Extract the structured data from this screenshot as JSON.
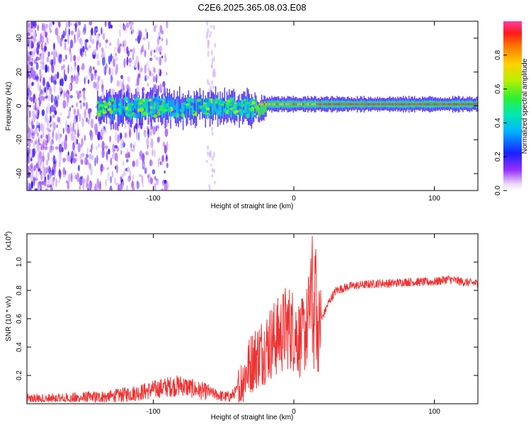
{
  "title": "C2E6.2025.365.08.03.E08",
  "colors": {
    "line": "#ee3333",
    "axis": "#000000",
    "spectrogram_low": "#7b18e6",
    "spectrogram_high": "#ff2020"
  },
  "chart_data": [
    {
      "type": "heatmap",
      "title": "C2E6.2025.365.08.03.E08",
      "xlabel": "Height of straight line (km)",
      "ylabel": "Frequency (Hz)",
      "xlim": [
        -190,
        131
      ],
      "ylim": [
        -50,
        50
      ],
      "xticks": [
        -100,
        0,
        100
      ],
      "xtick_labels": [
        "-100",
        "0",
        "100"
      ],
      "yticks": [
        -40,
        -20,
        0,
        20,
        40
      ],
      "ytick_labels": [
        "-40",
        "-20",
        "0",
        "20",
        "40"
      ],
      "colorbar": {
        "label": "Normalized spectral amplitude",
        "range": [
          0,
          1
        ],
        "ticks": [
          0.0,
          0.2,
          0.4,
          0.6,
          0.8
        ],
        "tick_labels": [
          "0.0",
          "0.2",
          "0.4",
          "0.6",
          "0.8"
        ],
        "colormap": "rainbow"
      },
      "description_of_values": {
        "band_center_hz": 1,
        "band_core_x_range_km": [
          -140,
          131
        ],
        "high_amplitude_region_km": [
          -25,
          131
        ],
        "broadband_noise_region_km": [
          -190,
          -110
        ]
      }
    },
    {
      "type": "line",
      "xlabel": "Height of straight line (km)",
      "ylabel": "SNR (10 * v/v)",
      "y_multiplier": "(x10",
      "y_multiplier_exp": "4",
      "xlim": [
        -190,
        131
      ],
      "ylim": [
        0,
        1.2
      ],
      "xticks": [
        -100,
        0,
        100
      ],
      "xtick_labels": [
        "-100",
        "0",
        "100"
      ],
      "yticks": [
        0.2,
        0.4,
        0.6,
        0.8,
        1.0
      ],
      "ytick_labels": [
        "0.2",
        "0.4",
        "0.6",
        "0.8",
        "1.0"
      ],
      "series": [
        {
          "name": "SNR",
          "x": [
            -190,
            -170,
            -150,
            -130,
            -110,
            -100,
            -90,
            -80,
            -70,
            -60,
            -50,
            -45,
            -40,
            -35,
            -30,
            -25,
            -20,
            -15,
            -10,
            -5,
            0,
            5,
            10,
            12,
            15,
            20,
            25,
            30,
            40,
            50,
            60,
            70,
            80,
            90,
            100,
            110,
            120,
            131
          ],
          "y": [
            0.03,
            0.03,
            0.04,
            0.05,
            0.08,
            0.1,
            0.12,
            0.13,
            0.1,
            0.08,
            0.05,
            0.05,
            0.1,
            0.2,
            0.3,
            0.35,
            0.4,
            0.45,
            0.48,
            0.55,
            0.52,
            0.45,
            0.55,
            0.8,
            0.45,
            0.6,
            0.72,
            0.8,
            0.83,
            0.84,
            0.85,
            0.85,
            0.86,
            0.86,
            0.86,
            0.88,
            0.86,
            0.85
          ]
        }
      ]
    }
  ]
}
